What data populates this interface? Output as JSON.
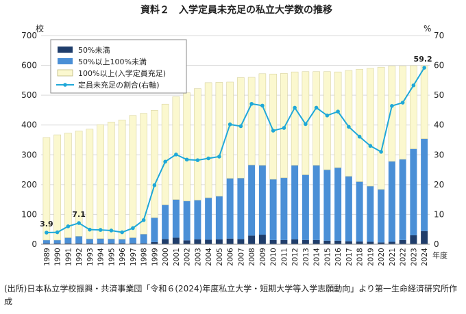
{
  "chart_data": {
    "type": "bar",
    "title": "資料２　入学定員未充足の私立大学数の推移",
    "left_axis_unit": "校",
    "right_axis_unit": "%",
    "x_axis_unit": "年度",
    "ylim_left": [
      0,
      700
    ],
    "ylim_right": [
      0,
      70
    ],
    "left_ticks": [
      "0",
      "100",
      "200",
      "300",
      "400",
      "500",
      "600",
      "700"
    ],
    "right_ticks": [
      "0",
      "10",
      "20",
      "30",
      "40",
      "50",
      "60",
      "70"
    ],
    "grid": true,
    "legend_position": "top-left",
    "categories": [
      "1989",
      "1990",
      "1991",
      "1992",
      "1993",
      "1994",
      "1995",
      "1996",
      "1997",
      "1998",
      "1999",
      "2000",
      "2001",
      "2002",
      "2003",
      "2004",
      "2005",
      "2006",
      "2007",
      "2008",
      "2009",
      "2010",
      "2011",
      "2012",
      "2013",
      "2014",
      "2015",
      "2016",
      "2017",
      "2018",
      "2019",
      "2020",
      "2021",
      "2022",
      "2023",
      "2024"
    ],
    "series": [
      {
        "name": "50%未満",
        "kind": "stacked-bar",
        "color": "#1f3d6b",
        "values": [
          3,
          3,
          3,
          3,
          3,
          3,
          3,
          3,
          3,
          3,
          7,
          17,
          22,
          13,
          16,
          15,
          16,
          19,
          17,
          29,
          32,
          14,
          14,
          16,
          14,
          14,
          12,
          12,
          10,
          9,
          8,
          6,
          8,
          14,
          30,
          44
        ]
      },
      {
        "name": "50%以上100%未満",
        "kind": "stacked-bar",
        "color": "#4a8fd6",
        "values": [
          11,
          11,
          19,
          24,
          15,
          16,
          15,
          14,
          19,
          31,
          82,
          115,
          128,
          132,
          132,
          141,
          145,
          202,
          205,
          237,
          233,
          204,
          209,
          249,
          219,
          251,
          238,
          245,
          218,
          201,
          187,
          178,
          270,
          271,
          290,
          310
        ]
      },
      {
        "name": "100%以上(入学定員充足)",
        "kind": "stacked-bar",
        "color": "#fbf8cf",
        "values": [
          344,
          353,
          351,
          353,
          368,
          382,
          392,
          400,
          410,
          405,
          360,
          338,
          345,
          363,
          374,
          386,
          382,
          323,
          337,
          294,
          307,
          353,
          350,
          313,
          346,
          314,
          329,
          321,
          355,
          377,
          395,
          410,
          320,
          313,
          279,
          245
        ]
      },
      {
        "name": "定員未充足の割合(右軸)",
        "kind": "line",
        "axis": "right",
        "color": "#1fa8d8",
        "values": [
          3.9,
          4.0,
          6.0,
          7.1,
          4.9,
          4.8,
          4.6,
          4.0,
          5.4,
          8.1,
          19.8,
          27.7,
          30.1,
          28.4,
          28.2,
          28.8,
          29.4,
          40.2,
          39.6,
          47.1,
          46.5,
          38.1,
          39.0,
          45.8,
          40.3,
          45.8,
          43.2,
          44.5,
          39.4,
          36.1,
          33.0,
          31.0,
          46.4,
          47.5,
          53.3,
          59.2
        ]
      }
    ],
    "annotations": [
      {
        "index": 0,
        "label": "3.9"
      },
      {
        "index": 3,
        "label": "7.1"
      },
      {
        "index": 35,
        "label": "59.2"
      }
    ]
  },
  "source_note": "(出所)日本私立学校振興・共済事業団「令和６(2024)年度私立大学・短期大学等入学志願動向」より第一生命経済研究所作成"
}
